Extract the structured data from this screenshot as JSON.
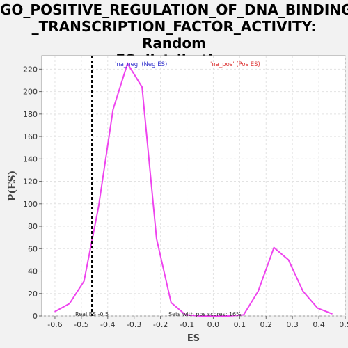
{
  "title": {
    "line1": "GO_POSITIVE_REGULATION_OF_DNA_BINDING",
    "line2": "_TRANSCRIPTION_FACTOR_ACTIVITY: Random",
    "line3": "ES distribution"
  },
  "chart_data": {
    "type": "line",
    "xlabel": "ES",
    "ylabel": "P(ES)",
    "xlim": [
      -0.65,
      0.5
    ],
    "ylim": [
      0,
      232
    ],
    "xticks": [
      -0.6,
      -0.5,
      -0.4,
      -0.3,
      -0.2,
      -0.1,
      0.0,
      0.1,
      0.2,
      0.3,
      0.4,
      0.5
    ],
    "xtick_labels": [
      "-0.6",
      "-0.5",
      "-0.4",
      "-0.3",
      "-0.2",
      "-0.1",
      "0.0",
      "0.1",
      "0.2",
      "0.3",
      "0.4",
      "0.5"
    ],
    "yticks": [
      0,
      20,
      40,
      60,
      80,
      100,
      120,
      140,
      160,
      180,
      200,
      220
    ],
    "grid": true,
    "series": [
      {
        "color": "#ee44ee",
        "x": [
          -0.6,
          -0.545,
          -0.49,
          -0.435,
          -0.38,
          -0.325,
          -0.27,
          -0.215,
          -0.16,
          -0.105,
          -0.05,
          0.005,
          0.06,
          0.115,
          0.17,
          0.23,
          0.285,
          0.34,
          0.395,
          0.45
        ],
        "y": [
          4,
          11,
          31,
          97,
          184,
          225,
          204,
          69,
          12,
          1,
          0,
          0,
          0,
          1,
          22,
          61,
          50,
          22,
          7,
          2
        ]
      }
    ],
    "legend": [
      {
        "label": "'na_neg' (Neg ES)",
        "color": "#3333cc"
      },
      {
        "label": "'na_pos' (Pos ES)",
        "color": "#dd3333"
      }
    ],
    "real_es": {
      "x": -0.46,
      "label": "Real ES -0.5"
    },
    "annotation": "Sets with pos scores: 16%"
  }
}
